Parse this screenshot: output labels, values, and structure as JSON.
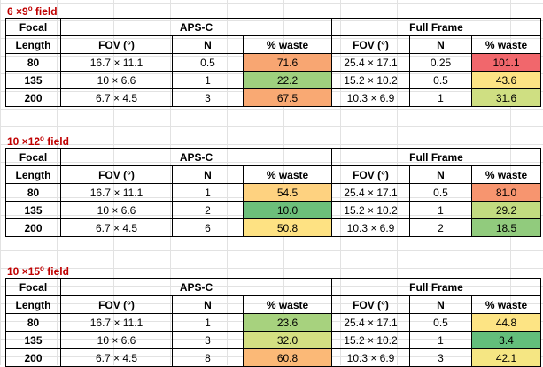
{
  "headers": {
    "focal": "Focal",
    "length": "Length",
    "apsc": "APS-C",
    "fullframe": "Full Frame",
    "fov": "FOV (°)",
    "n": "N",
    "waste": "% waste"
  },
  "sections": [
    {
      "title_main": "6 ×9",
      "title_sup": "o",
      "title_tail": " field",
      "rows": [
        {
          "focal": "80",
          "aps_fov": "16.7 × 11.1",
          "aps_n": "0.5",
          "aps_waste": "71.6",
          "aps_color": "#f8a672",
          "ff_fov": "25.4 × 17.1",
          "ff_n": "0.25",
          "ff_waste": "101.1",
          "ff_color": "#f1676c"
        },
        {
          "focal": "135",
          "aps_fov": "10 × 6.6",
          "aps_n": "1",
          "aps_waste": "22.2",
          "aps_color": "#9fd07e",
          "ff_fov": "15.2 × 10.2",
          "ff_n": "0.5",
          "ff_waste": "43.6",
          "ff_color": "#fde484"
        },
        {
          "focal": "200",
          "aps_fov": "6.7 × 4.5",
          "aps_n": "3",
          "aps_waste": "67.5",
          "aps_color": "#f9a973",
          "ff_fov": "10.3 × 6.9",
          "ff_n": "1",
          "ff_waste": "31.6",
          "ff_color": "#cfdf82"
        }
      ]
    },
    {
      "title_main": "10 ×12",
      "title_sup": "o",
      "title_tail": " field",
      "rows": [
        {
          "focal": "80",
          "aps_fov": "16.7 × 11.1",
          "aps_n": "1",
          "aps_waste": "54.5",
          "aps_color": "#fed280",
          "ff_fov": "25.4 × 17.1",
          "ff_n": "0.5",
          "ff_waste": "81.0",
          "ff_color": "#f7956f"
        },
        {
          "focal": "135",
          "aps_fov": "10 × 6.6",
          "aps_n": "2",
          "aps_waste": "10.0",
          "aps_color": "#6cbf7a",
          "ff_fov": "15.2 × 10.2",
          "ff_n": "1",
          "ff_waste": "29.2",
          "ff_color": "#c2db80"
        },
        {
          "focal": "200",
          "aps_fov": "6.7 × 4.5",
          "aps_n": "6",
          "aps_waste": "50.8",
          "aps_color": "#fee283",
          "ff_fov": "10.3 × 6.9",
          "ff_n": "2",
          "ff_waste": "18.5",
          "ff_color": "#91cb7d"
        }
      ]
    },
    {
      "title_main": "10 ×15",
      "title_sup": "o",
      "title_tail": " field",
      "rows": [
        {
          "focal": "80",
          "aps_fov": "16.7 × 11.1",
          "aps_n": "1",
          "aps_waste": "23.6",
          "aps_color": "#a7d27e",
          "ff_fov": "25.4 × 17.1",
          "ff_n": "0.5",
          "ff_waste": "44.8",
          "ff_color": "#fde484"
        },
        {
          "focal": "135",
          "aps_fov": "10 × 6.6",
          "aps_n": "3",
          "aps_waste": "32.0",
          "aps_color": "#d4df82",
          "ff_fov": "15.2 × 10.2",
          "ff_n": "1",
          "ff_waste": "3.4",
          "ff_color": "#63be7b"
        },
        {
          "focal": "200",
          "aps_fov": "6.7 × 4.5",
          "aps_n": "8",
          "aps_waste": "60.8",
          "aps_color": "#fbb977",
          "ff_fov": "10.3 × 6.9",
          "ff_n": "3",
          "ff_waste": "42.1",
          "ff_color": "#f5e683"
        }
      ]
    }
  ]
}
